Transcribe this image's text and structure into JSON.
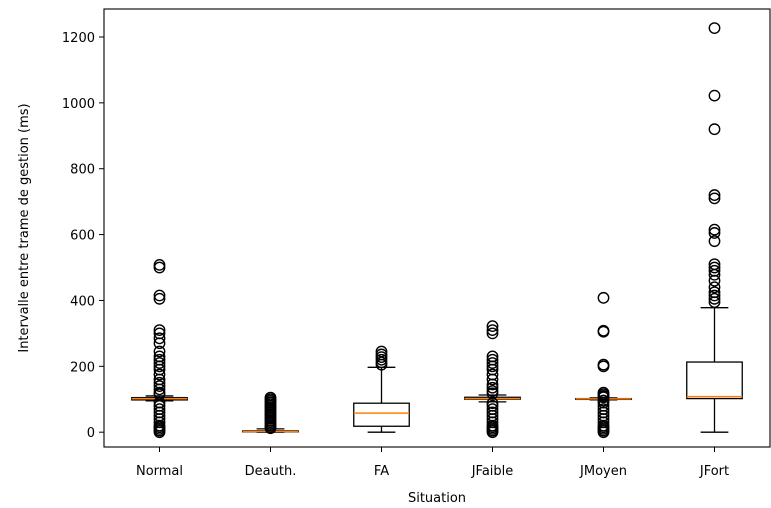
{
  "chart_data": {
    "type": "box",
    "title": "",
    "xlabel": "Situation",
    "ylabel": "Intervalle entre trame de gestion (ms)",
    "ylim": [
      -45,
      1285
    ],
    "yticks": [
      0,
      200,
      400,
      600,
      800,
      1000,
      1200
    ],
    "grid": false,
    "categories": [
      "Normal",
      "Deauth.",
      "FA",
      "JFaible",
      "JMoyen",
      "JFort"
    ],
    "boxes": [
      {
        "category": "Normal",
        "whisker_low": 95,
        "q1": 98,
        "median": 102,
        "q3": 105,
        "whisker_high": 110,
        "outliers": [
          0,
          5,
          10,
          15,
          20,
          30,
          40,
          50,
          60,
          70,
          80,
          90,
          115,
          120,
          130,
          140,
          150,
          160,
          175,
          190,
          200,
          210,
          220,
          230,
          245,
          270,
          285,
          300,
          310,
          405,
          415,
          500,
          508
        ]
      },
      {
        "category": "Deauth.",
        "whisker_low": 0,
        "q1": 1,
        "median": 2,
        "q3": 4,
        "whisker_high": 10,
        "outliers": [
          12,
          15,
          20,
          25,
          30,
          35,
          40,
          45,
          50,
          55,
          60,
          65,
          70,
          75,
          80,
          85,
          90,
          95,
          100,
          105
        ]
      },
      {
        "category": "FA",
        "whisker_low": 0,
        "q1": 18,
        "median": 58,
        "q3": 88,
        "whisker_high": 197,
        "outliers": [
          205,
          212,
          220,
          228,
          236,
          245
        ]
      },
      {
        "category": "JFaible",
        "whisker_low": 92,
        "q1": 100,
        "median": 102,
        "q3": 106,
        "whisker_high": 113,
        "outliers": [
          0,
          5,
          10,
          15,
          20,
          30,
          40,
          50,
          60,
          70,
          80,
          88,
          118,
          125,
          135,
          145,
          160,
          175,
          190,
          200,
          210,
          220,
          230,
          300,
          310,
          322
        ]
      },
      {
        "category": "JMoyen",
        "whisker_low": 98,
        "q1": 100,
        "median": 101,
        "q3": 102,
        "whisker_high": 104,
        "outliers": [
          0,
          5,
          10,
          15,
          20,
          30,
          40,
          50,
          60,
          70,
          80,
          90,
          96,
          106,
          110,
          115,
          120,
          200,
          205,
          305,
          308,
          408
        ]
      },
      {
        "category": "JFort",
        "whisker_low": 0,
        "q1": 102,
        "median": 108,
        "q3": 213,
        "whisker_high": 378,
        "outliers": [
          395,
          405,
          415,
          425,
          440,
          460,
          478,
          490,
          500,
          510,
          580,
          605,
          615,
          710,
          720,
          920,
          1022,
          1227
        ]
      }
    ],
    "colors": {
      "box": "#000000",
      "median": "#ff7f0e",
      "outlier": "#000000"
    }
  }
}
